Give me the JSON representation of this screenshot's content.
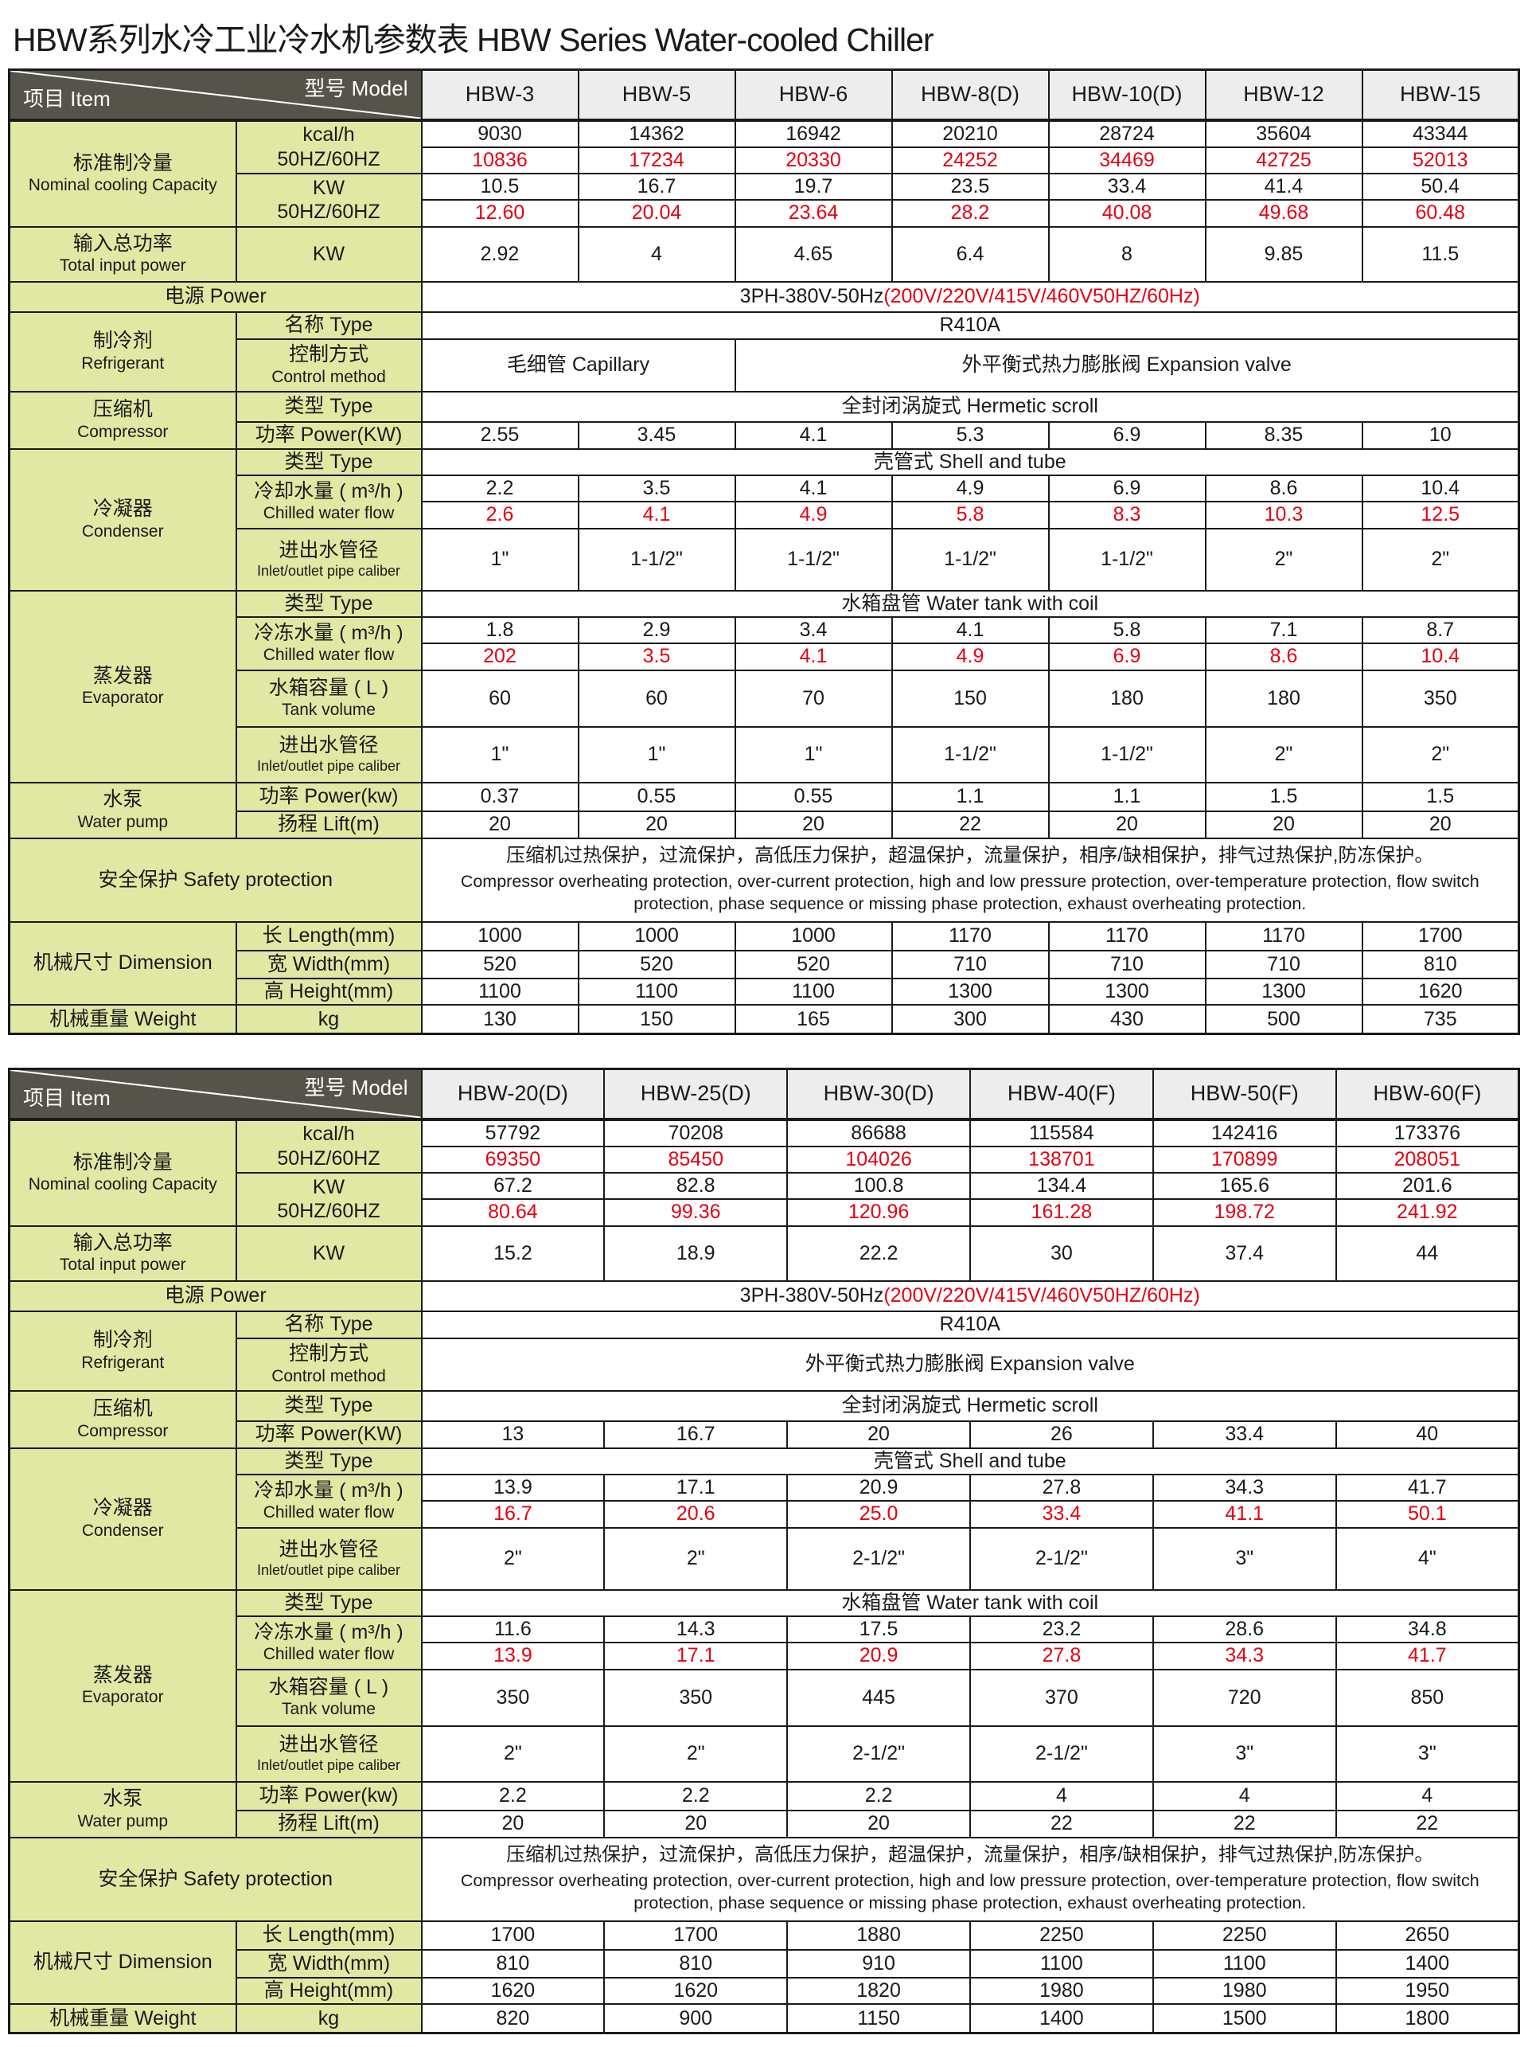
{
  "title": "HBW系列水冷工业冷水机参数表  HBW Series Water-cooled Chiller",
  "colors": {
    "label_bg": "#e0e8a4",
    "model_header_bg": "#ededed",
    "corner_bg": "#56534b",
    "red_text": "#e60012",
    "border": "#1a1a1a"
  },
  "corner": {
    "top_right": "型号  Model",
    "bottom_left": "项目  Item"
  },
  "labels": {
    "cooling": [
      "标准制冷量",
      "Nominal cooling Capacity"
    ],
    "kcal": [
      "kcal/h",
      "50HZ/60HZ"
    ],
    "kw": [
      "KW",
      "50HZ/60HZ"
    ],
    "input_power": [
      "输入总功率",
      "Total input power"
    ],
    "input_power_unit": "KW",
    "power": "电源  Power",
    "refrigerant": [
      "制冷剂",
      "Refrigerant"
    ],
    "name_type": "名称  Type",
    "control": [
      "控制方式",
      "Control method"
    ],
    "compressor": [
      "压缩机",
      "Compressor"
    ],
    "type": "类型  Type",
    "comp_power": "功率  Power(KW)",
    "condenser": [
      "冷凝器",
      "Condenser"
    ],
    "cond_flow": [
      "冷却水量 ( m³/h )",
      "Chilled water flow"
    ],
    "pipe": [
      "进出水管径",
      "Inlet/outlet pipe caliber"
    ],
    "evaporator": [
      "蒸发器",
      "Evaporator"
    ],
    "evap_flow": [
      "冷冻水量 ( m³/h )",
      "Chilled water flow"
    ],
    "tank": [
      "水箱容量 ( L )",
      "Tank volume"
    ],
    "pump": [
      "水泵",
      "Water pump"
    ],
    "pump_power": "功率  Power(kw)",
    "lift": "扬程  Lift(m)",
    "safety": "安全保护  Safety protection",
    "safety_cn": "压缩机过热保护，过流保护，高低压力保护，超温保护，流量保护，相序/缺相保护，排气过热保护,防冻保护。",
    "safety_en": "Compressor overheating protection, over-current protection, high and low pressure protection, over-temperature protection, flow switch protection, phase sequence or missing phase protection, exhaust overheating protection.",
    "dimension": "机械尺寸  Dimension",
    "length": "长  Length(mm)",
    "width": "宽  Width(mm)",
    "height": "高  Height(mm)",
    "weight": "机械重量  Weight",
    "kg": "kg"
  },
  "shared_values": {
    "power_supply_black": "3PH-380V-50Hz",
    "power_supply_red": "(200V/220V/415V/460V50HZ/60Hz)",
    "refrigerant_name": "R410A",
    "capillary": "毛细管  Capillary",
    "expansion": "外平衡式热力膨胀阀  Expansion valve",
    "hermetic": "全封闭涡旋式 Hermetic scroll",
    "shell_tube": "壳管式  Shell and tube",
    "water_tank": "水箱盘管 Water tank with coil"
  },
  "tables": [
    {
      "name": "spec-table-small-models",
      "models": [
        "HBW-3",
        "HBW-5",
        "HBW-6",
        "HBW-8(D)",
        "HBW-10(D)",
        "HBW-12",
        "HBW-15"
      ],
      "kcal_50": [
        "9030",
        "14362",
        "16942",
        "20210",
        "28724",
        "35604",
        "43344"
      ],
      "kcal_60": [
        "10836",
        "17234",
        "20330",
        "24252",
        "34469",
        "42725",
        "52013"
      ],
      "kw_50": [
        "10.5",
        "16.7",
        "19.7",
        "23.5",
        "33.4",
        "41.4",
        "50.4"
      ],
      "kw_60": [
        "12.60",
        "20.04",
        "23.64",
        "28.2",
        "40.08",
        "49.68",
        "60.48"
      ],
      "total_input": [
        "2.92",
        "4",
        "4.65",
        "6.4",
        "8",
        "9.85",
        "11.5"
      ],
      "control": [
        {
          "key": "capillary",
          "span": 2
        },
        {
          "key": "expansion",
          "span": 5
        }
      ],
      "comp_power": [
        "2.55",
        "3.45",
        "4.1",
        "5.3",
        "6.9",
        "8.35",
        "10"
      ],
      "cond_flow_50": [
        "2.2",
        "3.5",
        "4.1",
        "4.9",
        "6.9",
        "8.6",
        "10.4"
      ],
      "cond_flow_60": [
        "2.6",
        "4.1",
        "4.9",
        "5.8",
        "8.3",
        "10.3",
        "12.5"
      ],
      "cond_pipe": [
        "1\"",
        "1-1/2\"",
        "1-1/2\"",
        "1-1/2\"",
        "1-1/2\"",
        "2\"",
        "2\""
      ],
      "evap_flow_50": [
        "1.8",
        "2.9",
        "3.4",
        "4.1",
        "5.8",
        "7.1",
        "8.7"
      ],
      "evap_flow_60": [
        "202",
        "3.5",
        "4.1",
        "4.9",
        "6.9",
        "8.6",
        "10.4"
      ],
      "tank_volume": [
        "60",
        "60",
        "70",
        "150",
        "180",
        "180",
        "350"
      ],
      "evap_pipe": [
        "1\"",
        "1\"",
        "1\"",
        "1-1/2\"",
        "1-1/2\"",
        "2\"",
        "2\""
      ],
      "pump_power": [
        "0.37",
        "0.55",
        "0.55",
        "1.1",
        "1.1",
        "1.5",
        "1.5"
      ],
      "lift": [
        "20",
        "20",
        "20",
        "22",
        "20",
        "20",
        "20"
      ],
      "length": [
        "1000",
        "1000",
        "1000",
        "1170",
        "1170",
        "1170",
        "1700"
      ],
      "width": [
        "520",
        "520",
        "520",
        "710",
        "710",
        "710",
        "810"
      ],
      "height": [
        "1100",
        "1100",
        "1100",
        "1300",
        "1300",
        "1300",
        "1620"
      ],
      "weight": [
        "130",
        "150",
        "165",
        "300",
        "430",
        "500",
        "735"
      ]
    },
    {
      "name": "spec-table-large-models",
      "models": [
        "HBW-20(D)",
        "HBW-25(D)",
        "HBW-30(D)",
        "HBW-40(F)",
        "HBW-50(F)",
        "HBW-60(F)"
      ],
      "kcal_50": [
        "57792",
        "70208",
        "86688",
        "115584",
        "142416",
        "173376"
      ],
      "kcal_60": [
        "69350",
        "85450",
        "104026",
        "138701",
        "170899",
        "208051"
      ],
      "kw_50": [
        "67.2",
        "82.8",
        "100.8",
        "134.4",
        "165.6",
        "201.6"
      ],
      "kw_60": [
        "80.64",
        "99.36",
        "120.96",
        "161.28",
        "198.72",
        "241.92"
      ],
      "total_input": [
        "15.2",
        "18.9",
        "22.2",
        "30",
        "37.4",
        "44"
      ],
      "control": [
        {
          "key": "expansion",
          "span": 6
        }
      ],
      "comp_power": [
        "13",
        "16.7",
        "20",
        "26",
        "33.4",
        "40"
      ],
      "cond_flow_50": [
        "13.9",
        "17.1",
        "20.9",
        "27.8",
        "34.3",
        "41.7"
      ],
      "cond_flow_60": [
        "16.7",
        "20.6",
        "25.0",
        "33.4",
        "41.1",
        "50.1"
      ],
      "cond_pipe": [
        "2\"",
        "2\"",
        "2-1/2\"",
        "2-1/2\"",
        "3\"",
        "4\""
      ],
      "evap_flow_50": [
        "11.6",
        "14.3",
        "17.5",
        "23.2",
        "28.6",
        "34.8"
      ],
      "evap_flow_60": [
        "13.9",
        "17.1",
        "20.9",
        "27.8",
        "34.3",
        "41.7"
      ],
      "tank_volume": [
        "350",
        "350",
        "445",
        "370",
        "720",
        "850"
      ],
      "evap_pipe": [
        "2\"",
        "2\"",
        "2-1/2\"",
        "2-1/2\"",
        "3\"",
        "3\""
      ],
      "pump_power": [
        "2.2",
        "2.2",
        "2.2",
        "4",
        "4",
        "4"
      ],
      "lift": [
        "20",
        "20",
        "20",
        "22",
        "22",
        "22"
      ],
      "length": [
        "1700",
        "1700",
        "1880",
        "2250",
        "2250",
        "2650"
      ],
      "width": [
        "810",
        "810",
        "910",
        "1100",
        "1100",
        "1400"
      ],
      "height": [
        "1620",
        "1620",
        "1820",
        "1980",
        "1980",
        "1950"
      ],
      "weight": [
        "820",
        "900",
        "1150",
        "1400",
        "1500",
        "1800"
      ]
    }
  ]
}
